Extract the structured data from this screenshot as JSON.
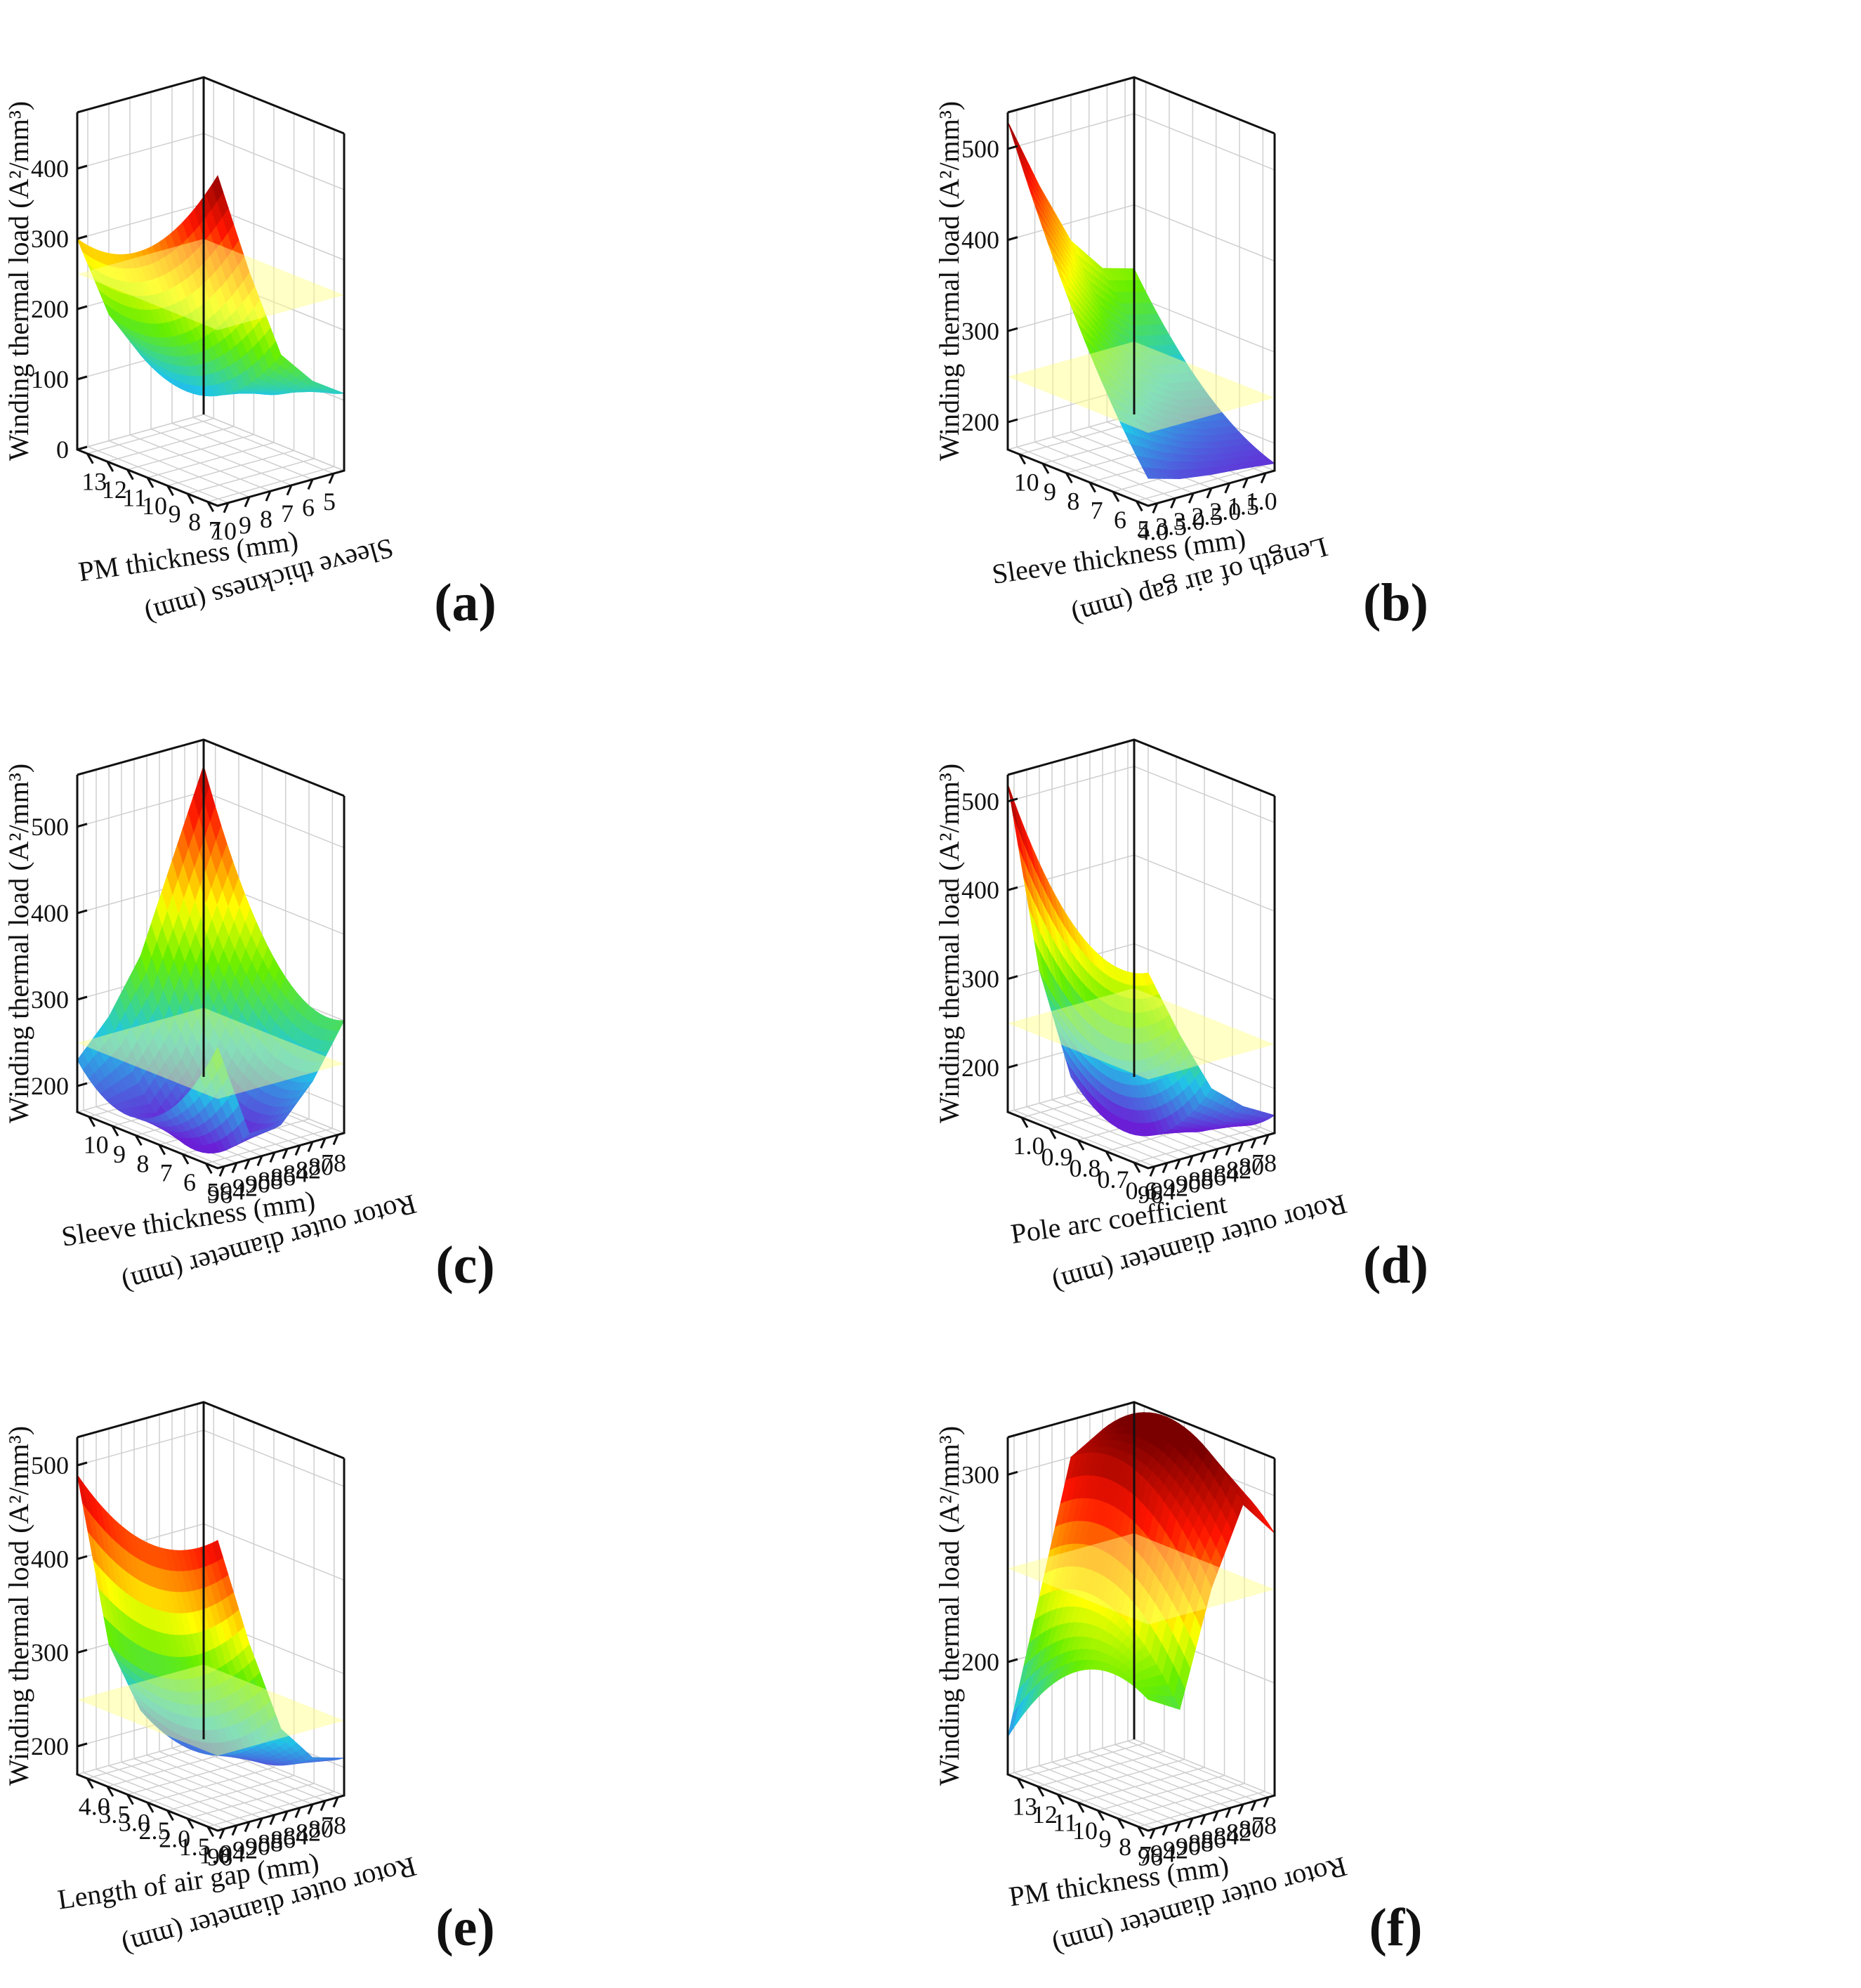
{
  "figure": {
    "colors": {
      "low": "#6a1fd6",
      "mid_low": "#20c6e8",
      "mid": "#66ee00",
      "mid_high": "#ffff00",
      "high": "#ff1400",
      "top": "#7a0000",
      "plane": "#ffff80",
      "axis": "#111111",
      "grid": "#cfcfcf"
    }
  },
  "chart_data": [
    {
      "id": "a",
      "label": "a",
      "type": "surface3d",
      "zlabel": "Winding thermal load (A²/mm³)",
      "xlabel": "Sleeve thickness (mm)",
      "ylabel": "PM thickness (mm)",
      "xticks": [
        "5",
        "6",
        "7",
        "8",
        "9",
        "10"
      ],
      "yticks": [
        "13",
        "12",
        "11",
        "10",
        "9",
        "8",
        "7"
      ],
      "zticks": [
        "0",
        "100",
        "200",
        "300",
        "400"
      ],
      "zlim": [
        0,
        480
      ],
      "xlim": [
        5,
        10
      ],
      "ylim": [
        13,
        7
      ],
      "plane_z": 250,
      "surface": {
        "left_edge": [
          245,
          160,
          110,
          180,
          300
        ],
        "right_edge": [
          110,
          140,
          190,
          320,
          470
        ],
        "sag": 0.35
      }
    },
    {
      "id": "b",
      "label": "b",
      "type": "surface3d",
      "zlabel": "Winding thermal load (A²/mm³)",
      "xlabel": "Length of air gap (mm)",
      "ylabel": "Sleeve thickness (mm)",
      "xticks": [
        "1.0",
        "1.5",
        "2.0",
        "2.5",
        "3.0",
        "3.5",
        "4.0"
      ],
      "yticks": [
        "10",
        "9",
        "8",
        "7",
        "6",
        "5"
      ],
      "zticks": [
        "200",
        "300",
        "400",
        "500"
      ],
      "zlim": [
        170,
        540
      ],
      "xlim": [
        1.0,
        4.0
      ],
      "ylim": [
        10,
        5
      ],
      "plane_z": 250,
      "surface": {
        "left_edge": [
          330,
          340,
          380,
          450,
          530
        ],
        "right_edge": [
          178,
          182,
          185,
          190,
          200
        ],
        "sag": 0.2
      }
    },
    {
      "id": "c",
      "label": "c",
      "type": "surface3d",
      "zlabel": "Winding thermal load (A²/mm³)",
      "xlabel": "Rotor outer diameter (mm)",
      "ylabel": "Sleeve thickness (mm)",
      "xticks": [
        "78",
        "80",
        "82",
        "84",
        "86",
        "88",
        "90",
        "92",
        "94",
        "96"
      ],
      "yticks": [
        "10",
        "9",
        "8",
        "7",
        "6",
        "5"
      ],
      "zticks": [
        "200",
        "300",
        "400",
        "500"
      ],
      "zlim": [
        170,
        560
      ],
      "xlim": [
        78,
        96
      ],
      "ylim": [
        10,
        5
      ],
      "plane_z": 250,
      "surface": {
        "left_edge": [
          530,
          430,
          330,
          270,
          230
        ],
        "right_edge": [
          300,
          240,
          200,
          200,
          310
        ],
        "sag": 0.55
      }
    },
    {
      "id": "d",
      "label": "d",
      "type": "surface3d",
      "zlabel": "Winding thermal load (A²/mm³)",
      "xlabel": "Rotor outer diameter (mm)",
      "ylabel": "Pole arc coefficient",
      "xticks": [
        "78",
        "80",
        "82",
        "84",
        "86",
        "88",
        "90",
        "92",
        "94",
        "96"
      ],
      "yticks": [
        "1.0",
        "0.9",
        "0.8",
        "0.7",
        "0.6"
      ],
      "zticks": [
        "200",
        "300",
        "400",
        "500"
      ],
      "zlim": [
        150,
        530
      ],
      "xlim": [
        78,
        96
      ],
      "ylim": [
        1.0,
        0.6
      ],
      "plane_z": 250,
      "surface": {
        "left_edge": [
          240,
          200,
          170,
          300,
          520
        ],
        "right_edge": [
          170,
          190,
          220,
          290,
          370
        ],
        "sag": 0.45
      }
    },
    {
      "id": "e",
      "label": "e",
      "type": "surface3d",
      "zlabel": "Winding thermal load (A²/mm³)",
      "xlabel": "Rotor outer diameter (mm)",
      "ylabel": "Length of air gap (mm)",
      "xticks": [
        "78",
        "80",
        "82",
        "84",
        "86",
        "88",
        "90",
        "92",
        "94",
        "96"
      ],
      "yticks": [
        "4.0",
        "3.5",
        "3.0",
        "2.5",
        "2.0",
        "1.5",
        "1.0"
      ],
      "zticks": [
        "200",
        "300",
        "400",
        "500"
      ],
      "zlim": [
        170,
        530
      ],
      "xlim": [
        78,
        96
      ],
      "ylim": [
        4.0,
        1.0
      ],
      "plane_z": 250,
      "surface": {
        "left_edge": [
          260,
          240,
          220,
          300,
          490
        ],
        "right_edge": [
          210,
          220,
          260,
          360,
          480
        ],
        "sag": 0.3
      }
    },
    {
      "id": "f",
      "label": "f",
      "type": "surface3d",
      "zlabel": "Winding thermal load (A²/mm³)",
      "xlabel": "Rotor outer diameter (mm)",
      "ylabel": "PM thickness (mm)",
      "xticks": [
        "78",
        "80",
        "82",
        "84",
        "86",
        "88",
        "90",
        "92",
        "94",
        "96"
      ],
      "yticks": [
        "13",
        "12",
        "11",
        "10",
        "9",
        "8",
        "7"
      ],
      "zticks": [
        "200",
        "300"
      ],
      "zlim": [
        140,
        320
      ],
      "xlim": [
        78,
        96
      ],
      "ylim": [
        13,
        7
      ],
      "plane_z": 250,
      "surface": {
        "left_edge": [
          270,
          310,
          300,
          230,
          160
        ],
        "right_edge": [
          280,
          300,
          260,
          200,
          210
        ],
        "sag": -0.4
      }
    }
  ]
}
